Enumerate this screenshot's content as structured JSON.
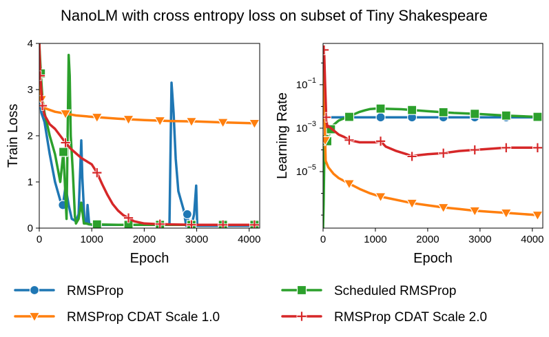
{
  "chart_data": {
    "title": "NanoLM with cross entropy loss on subset of Tiny Shakespeare",
    "legend": {
      "placement": "bottom",
      "entries": [
        {
          "label": "RMSProp",
          "color": "#1f77b4",
          "marker": "circle"
        },
        {
          "label": "Scheduled RMSProp",
          "color": "#2ca02c",
          "marker": "square"
        },
        {
          "label": "RMSProp CDAT Scale 1.0",
          "color": "#ff7f0e",
          "marker": "triangle-down"
        },
        {
          "label": "RMSProp CDAT Scale 2.0",
          "color": "#d62728",
          "marker": "plus"
        }
      ]
    },
    "panels": [
      {
        "type": "line",
        "xlabel": "Epoch",
        "ylabel": "Train Loss",
        "xlim": [
          0,
          4200
        ],
        "ylim": [
          0,
          4
        ],
        "yscale": "linear",
        "xticks": [
          0,
          1000,
          2000,
          3000,
          4000
        ],
        "yticks": [
          0,
          1,
          2,
          3,
          4
        ],
        "series": [
          {
            "name": "RMSProp",
            "color": "#1f77b4",
            "marker": "circle",
            "x": [
              0,
              40,
              100,
              200,
              300,
              400,
              450,
              500,
              560,
              620,
              700,
              750,
              800,
              820,
              860,
              900,
              920,
              950,
              980,
              1000,
              1100,
              1500,
              2000,
              2400,
              2480,
              2520,
              2560,
              2600,
              2650,
              2700,
              2750,
              2800,
              2820,
              2850,
              2900,
              2950,
              2990,
              3010,
              3050,
              3100,
              3500,
              4100
            ],
            "y": [
              3.0,
              2.5,
              2.3,
              1.6,
              1.0,
              0.6,
              0.5,
              0.9,
              0.5,
              0.2,
              0.15,
              0.3,
              1.9,
              1.1,
              0.2,
              0.1,
              0.5,
              0.1,
              0.08,
              0.07,
              0.07,
              0.07,
              0.07,
              0.07,
              0.07,
              3.15,
              2.5,
              1.5,
              0.8,
              0.6,
              0.4,
              0.05,
              0.3,
              0.05,
              0.05,
              0.3,
              0.92,
              0.05,
              0.05,
              0.05,
              0.05,
              0.05
            ],
            "markers_at": [
              450,
              2820,
              3500,
              4100
            ]
          },
          {
            "name": "Scheduled RMSProp",
            "color": "#2ca02c",
            "marker": "square",
            "x": [
              0,
              30,
              60,
              100,
              200,
              300,
              400,
              460,
              520,
              560,
              580,
              600,
              640,
              680,
              700,
              750,
              800,
              850,
              900,
              950,
              1000,
              1050,
              1100,
              1500,
              2000,
              2500,
              3000,
              3500,
              4100
            ],
            "y": [
              4.0,
              3.35,
              2.8,
              2.5,
              2.0,
              1.6,
              1.0,
              1.65,
              0.2,
              3.75,
              3.3,
              2.0,
              1.2,
              0.25,
              0.1,
              0.2,
              0.55,
              0.1,
              0.1,
              0.08,
              0.08,
              0.08,
              0.08,
              0.07,
              0.07,
              0.07,
              0.07,
              0.07,
              0.07
            ],
            "markers_at": [
              30,
              460,
              1100,
              1700,
              2300,
              2900,
              3500,
              4100
            ]
          },
          {
            "name": "RMSProp CDAT Scale 1.0",
            "color": "#ff7f0e",
            "marker": "triangle-down",
            "x": [
              0,
              20,
              100,
              300,
              500,
              700,
              1000,
              1500,
              2000,
              2500,
              3000,
              3500,
              4100
            ],
            "y": [
              3.9,
              2.85,
              2.6,
              2.52,
              2.48,
              2.44,
              2.41,
              2.37,
              2.34,
              2.32,
              2.31,
              2.29,
              2.27
            ],
            "markers_at": [
              40,
              500,
              1100,
              1700,
              2300,
              2900,
              3500,
              4100
            ]
          },
          {
            "name": "RMSProp CDAT Scale 2.0",
            "color": "#d62728",
            "marker": "plus",
            "x": [
              0,
              20,
              60,
              100,
              200,
              300,
              400,
              500,
              600,
              700,
              800,
              900,
              1000,
              1100,
              1200,
              1300,
              1400,
              1500,
              1600,
              1700,
              1800,
              2000,
              2200,
              2500,
              3000,
              3500,
              4100
            ],
            "y": [
              4.0,
              3.3,
              2.65,
              2.45,
              2.25,
              2.15,
              2.0,
              1.85,
              1.72,
              1.62,
              1.52,
              1.45,
              1.38,
              1.2,
              0.95,
              0.72,
              0.52,
              0.38,
              0.28,
              0.22,
              0.15,
              0.1,
              0.09,
              0.08,
              0.07,
              0.07,
              0.07
            ],
            "markers_at": [
              20,
              60,
              500,
              1100,
              1700,
              2300,
              2900,
              3500,
              4100
            ]
          }
        ]
      },
      {
        "type": "line",
        "xlabel": "Epoch",
        "ylabel": "Learning Rate",
        "xlim": [
          0,
          4200
        ],
        "ylim_log10": [
          -7.6,
          0.9
        ],
        "yscale": "log",
        "xticks": [
          0,
          1000,
          2000,
          3000,
          4000
        ],
        "yticks_log10": [
          -1,
          -3,
          -5
        ],
        "ytick_labels": [
          {
            "base": "10",
            "exp": "−1"
          },
          {
            "base": "10",
            "exp": "−3"
          },
          {
            "base": "10",
            "exp": "−5"
          }
        ],
        "series": [
          {
            "name": "RMSProp",
            "color": "#1f77b4",
            "marker": "circle",
            "x": [
              0,
              4100
            ],
            "log10_y": [
              -2.5,
              -2.5
            ],
            "markers_at": [
              20,
              500,
              1100,
              1700,
              2300,
              2900,
              3500,
              4100
            ]
          },
          {
            "name": "Scheduled RMSProp",
            "color": "#2ca02c",
            "marker": "square",
            "x": [
              0,
              10,
              20,
              30,
              40,
              60,
              80,
              100,
              150,
              200,
              300,
              400,
              500,
              600,
              700,
              800,
              900,
              1000,
              1100,
              1500,
              2000,
              2500,
              3000,
              3500,
              4100
            ],
            "log10_y": [
              -7.6,
              -6.5,
              -5.0,
              -3.5,
              -3.0,
              -3.2,
              -3.6,
              -3.4,
              -3.05,
              -2.85,
              -2.65,
              -2.55,
              -2.48,
              -2.35,
              -2.25,
              -2.18,
              -2.12,
              -2.1,
              -2.1,
              -2.13,
              -2.22,
              -2.3,
              -2.35,
              -2.42,
              -2.48
            ],
            "markers_at": [
              30,
              80,
              150,
              500,
              1100,
              1700,
              2300,
              2900,
              3500,
              4100
            ]
          },
          {
            "name": "RMSProp CDAT Scale 1.0",
            "color": "#ff7f0e",
            "marker": "triangle-down",
            "x": [
              0,
              50,
              100,
              200,
              300,
              500,
              700,
              900,
              1100,
              1300,
              1500,
              1700,
              2000,
              2300,
              2600,
              2900,
              3200,
              3500,
              3800,
              4100
            ],
            "log10_y": [
              0.2,
              -4.5,
              -4.8,
              -5.1,
              -5.3,
              -5.55,
              -5.8,
              -6.0,
              -6.15,
              -6.25,
              -6.35,
              -6.45,
              -6.55,
              -6.65,
              -6.72,
              -6.8,
              -6.85,
              -6.9,
              -6.95,
              -7.0
            ],
            "markers_at": [
              40,
              500,
              1100,
              1700,
              2300,
              2900,
              3500,
              4100
            ]
          },
          {
            "name": "RMSProp CDAT Scale 2.0",
            "color": "#d62728",
            "marker": "plus",
            "x": [
              0,
              20,
              40,
              60,
              80,
              100,
              200,
              300,
              400,
              500,
              600,
              700,
              800,
              900,
              1000,
              1100,
              1200,
              1400,
              1600,
              1700,
              1800,
              2000,
              2300,
              2600,
              2900,
              3200,
              3500,
              3800,
              4100
            ],
            "log10_y": [
              0.7,
              0.6,
              -1.0,
              -2.5,
              -2.95,
              -2.9,
              -3.1,
              -3.3,
              -3.4,
              -3.55,
              -3.6,
              -3.65,
              -3.65,
              -3.65,
              -3.65,
              -3.6,
              -3.85,
              -4.05,
              -4.2,
              -4.3,
              -4.25,
              -4.2,
              -4.15,
              -4.05,
              -4.0,
              -3.95,
              -3.9,
              -3.9,
              -3.9
            ],
            "markers_at": [
              20,
              60,
              500,
              1100,
              1700,
              2300,
              2900,
              3500,
              4100
            ]
          }
        ]
      }
    ]
  }
}
